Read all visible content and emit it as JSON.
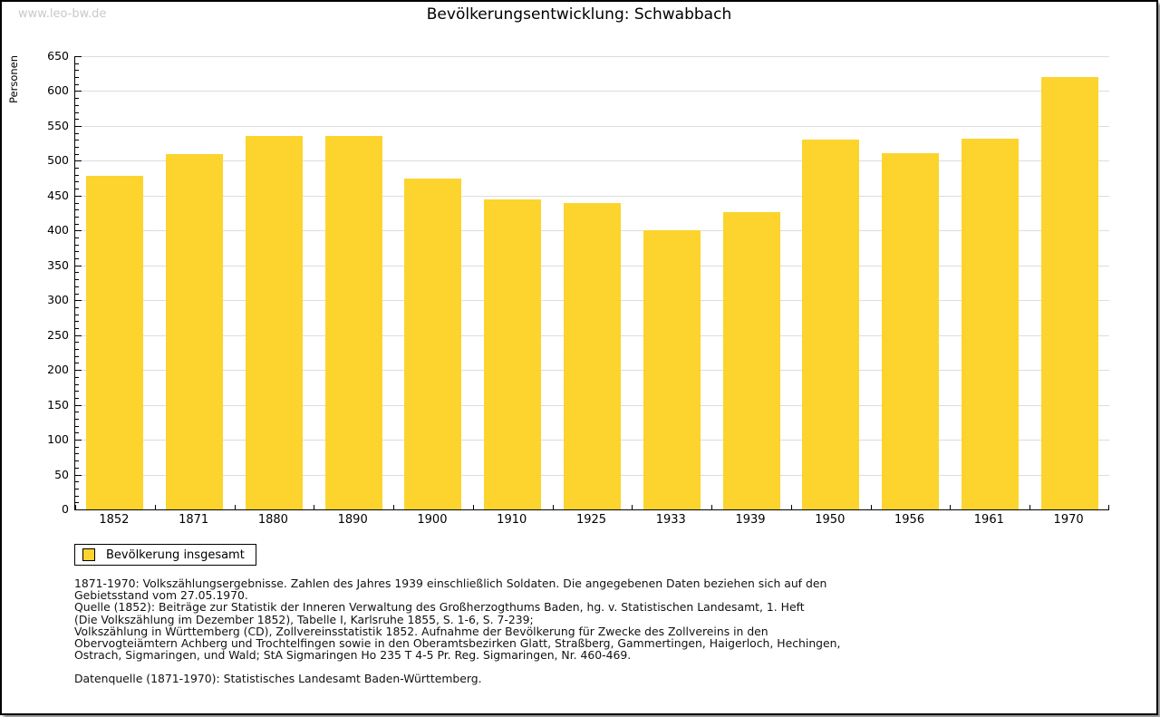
{
  "watermark": "www.leo-bw.de",
  "title": "Bevölkerungsentwicklung: Schwabbach",
  "legend": {
    "label": "Bevölkerung insgesamt",
    "swatch_color": "#FCD42D"
  },
  "footnote_lines": [
    "1871-1970: Volkszählungsergebnisse. Zahlen des Jahres 1939 einschließlich Soldaten. Die angegebenen Daten beziehen sich auf den",
    "Gebietsstand vom 27.05.1970.",
    "Quelle (1852): Beiträge zur Statistik der Inneren Verwaltung des Großherzogthums Baden, hg. v. Statistischen Landesamt, 1. Heft",
    "(Die Volkszählung im Dezember 1852), Tabelle I, Karlsruhe 1855, S. 1-6, S. 7-239;",
    "Volkszählung in Württemberg (CD), Zollvereinsstatistik 1852. Aufnahme der Bevölkerung für Zwecke des Zollvereins in den",
    "Obervogteiämtern Achberg und Trochtelfingen sowie in den Oberamtsbezirken Glatt, Straßberg, Gammertingen, Haigerloch, Hechingen,",
    "Ostrach, Sigmaringen, und Wald; StA Sigmaringen Ho 235 T 4-5 Pr. Reg. Sigmaringen, Nr. 460-469."
  ],
  "datasource": "Datenquelle (1871-1970): Statistisches Landesamt Baden-Württemberg.",
  "chart_data": {
    "type": "bar",
    "title": "Bevölkerungsentwicklung: Schwabbach",
    "categories": [
      "1852",
      "1871",
      "1880",
      "1890",
      "1900",
      "1910",
      "1925",
      "1933",
      "1939",
      "1950",
      "1956",
      "1961",
      "1970"
    ],
    "series": [
      {
        "name": "Bevölkerung insgesamt",
        "values": [
          478,
          510,
          535,
          535,
          474,
          444,
          439,
          401,
          426,
          530,
          511,
          532,
          620
        ]
      }
    ],
    "xlabel": "",
    "ylabel": "Personen",
    "ylim": [
      0,
      650
    ],
    "y_major_step": 50,
    "y_minor_step": 10,
    "grid": true,
    "gridline_color": "#dddddd",
    "bar_color": "#FCD42D",
    "legend_position": "bottom-left"
  }
}
